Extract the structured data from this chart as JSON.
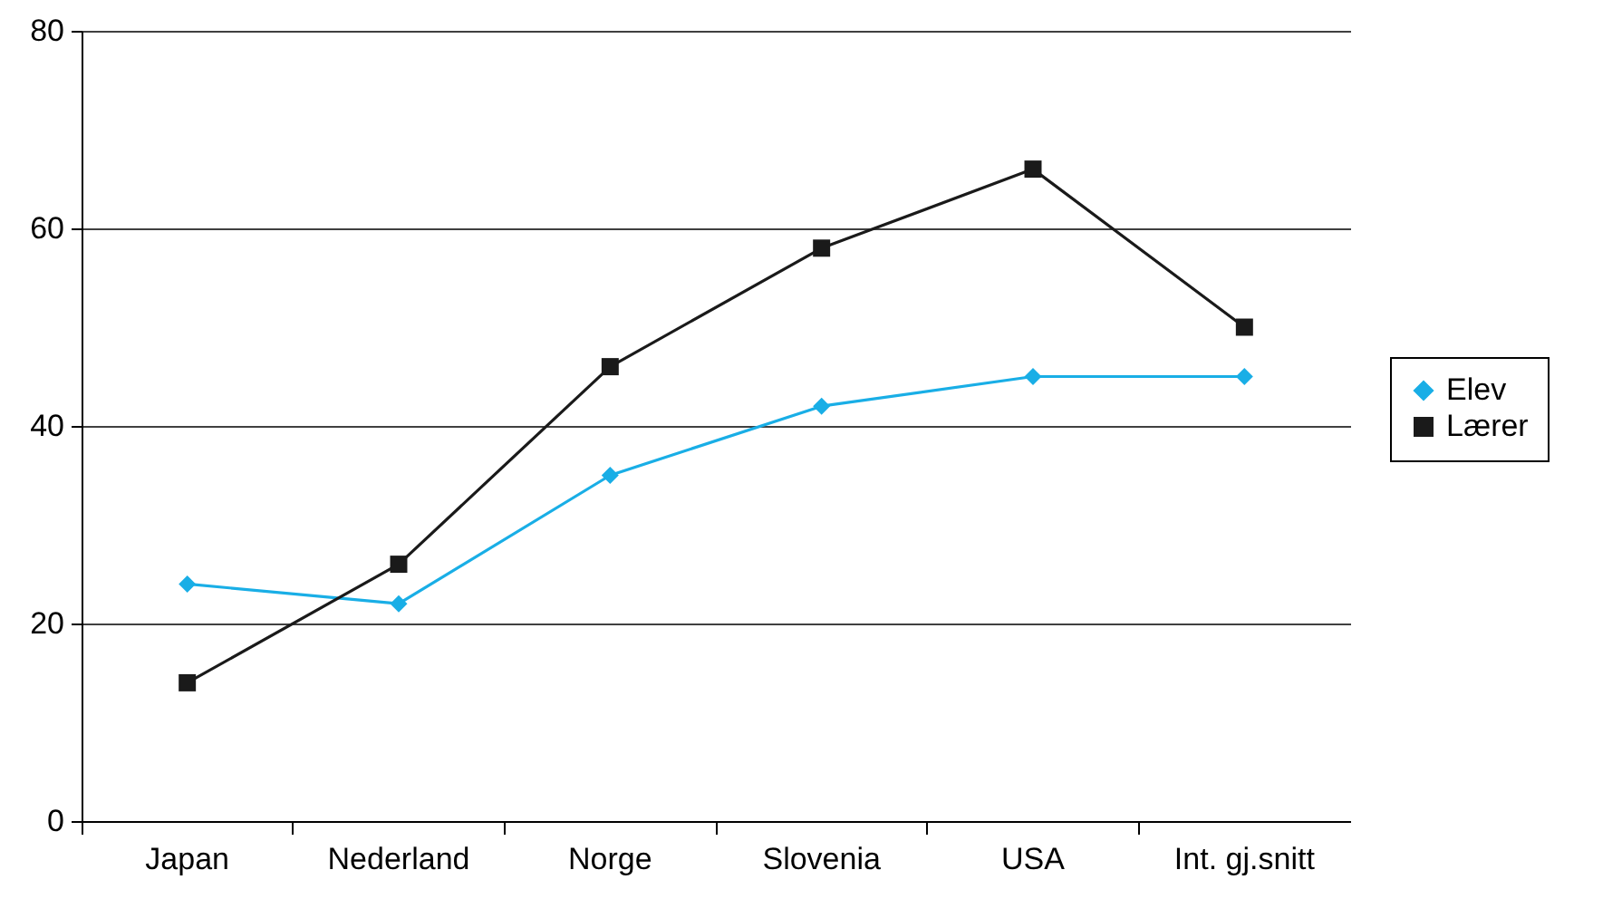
{
  "chart_data": {
    "type": "line",
    "categories": [
      "Japan",
      "Nederland",
      "Norge",
      "Slovenia",
      "USA",
      "Int. gj.snitt"
    ],
    "series": [
      {
        "name": "Elev",
        "color": "#19aee6",
        "marker": "diamond",
        "values": [
          24,
          22,
          35,
          42,
          45,
          45
        ]
      },
      {
        "name": "Lærer",
        "color": "#1a1a1a",
        "marker": "square",
        "values": [
          14,
          26,
          46,
          58,
          66,
          50
        ]
      }
    ],
    "ylim": [
      0,
      80
    ],
    "yticks": [
      0,
      20,
      40,
      60,
      80
    ],
    "grid": "y",
    "legend": "right",
    "line_style": "solid"
  }
}
